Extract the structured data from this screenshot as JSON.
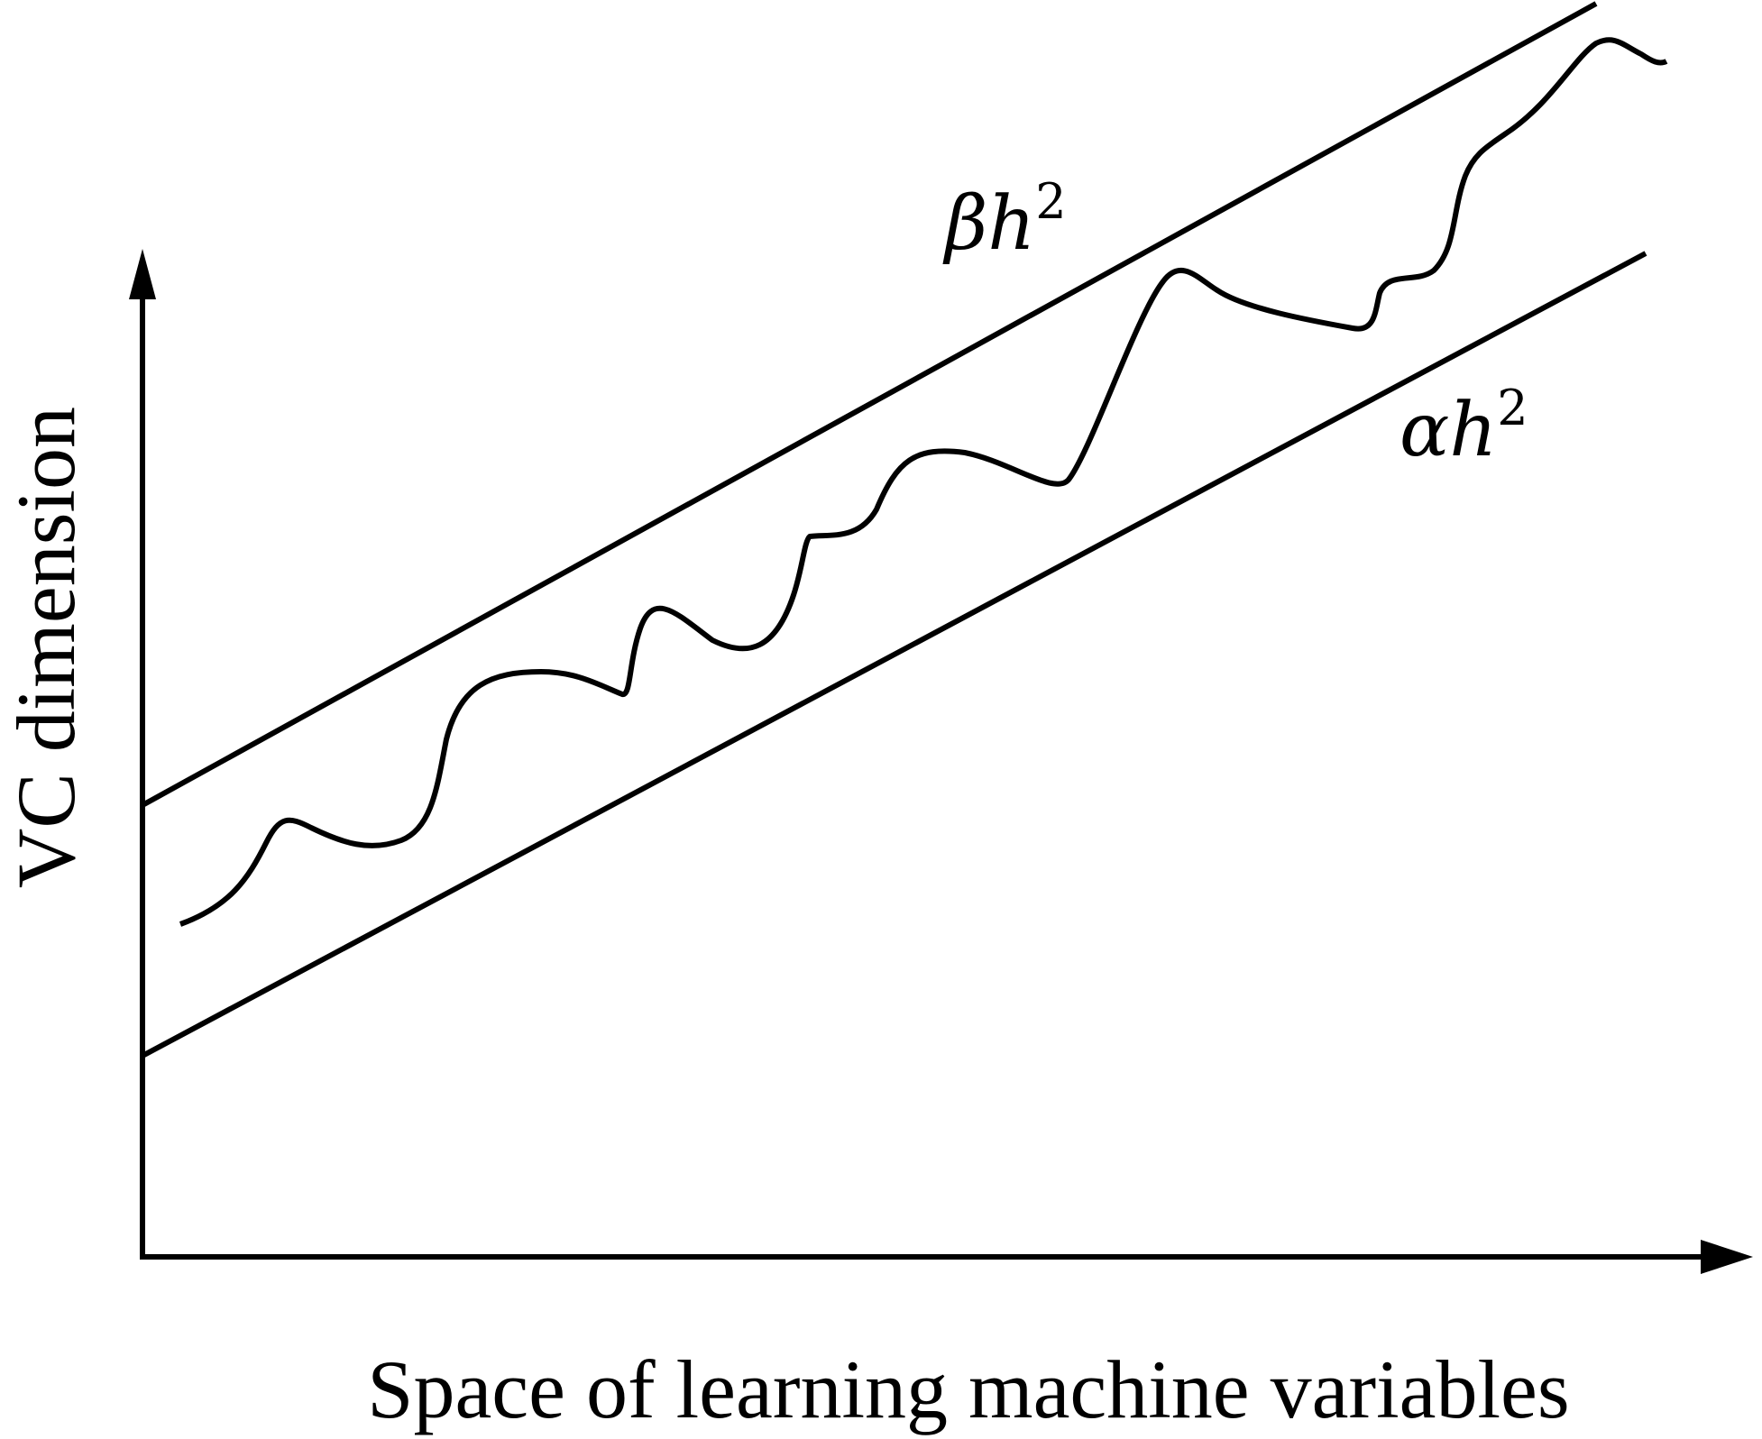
{
  "diagram": {
    "y_axis_label": "VC dimension",
    "x_axis_label": "Space of learning machine variables",
    "upper_bound": {
      "coefficient": "β",
      "variable": "h",
      "exponent": "2"
    },
    "lower_bound": {
      "coefficient": "α",
      "variable": "h",
      "exponent": "2"
    },
    "colors": {
      "stroke": "#000000",
      "background": "#ffffff"
    }
  }
}
